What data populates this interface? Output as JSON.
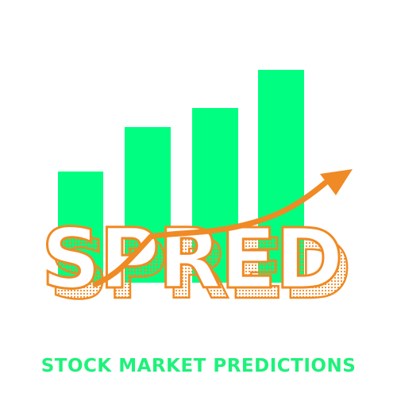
{
  "logo": {
    "wordmark": "SPRED",
    "tagline": "STOCK MARKET PREDICTIONS",
    "colors": {
      "bars": "#00ff80",
      "accent": "#f08a24",
      "tagline": "#1df27a",
      "background": "#ffffff"
    },
    "icon": "rising-bar-chart-with-arrow-icon",
    "bar_count": 4
  }
}
